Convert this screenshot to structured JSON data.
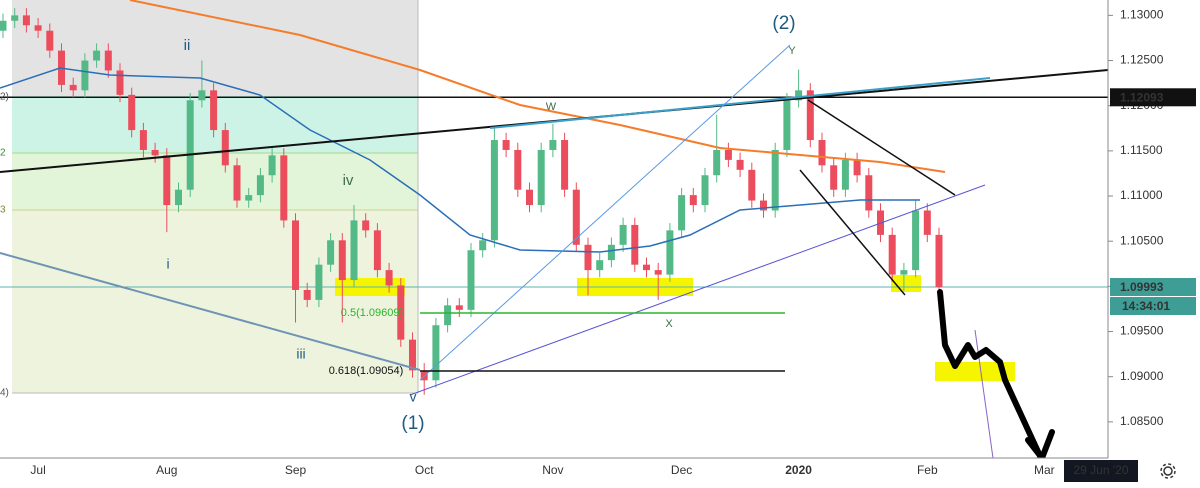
{
  "chart_data": {
    "type": "candlestick",
    "categories": [
      null,
      null,
      null,
      "Jul",
      null,
      null,
      null,
      null,
      null,
      null,
      null,
      null,
      null,
      null,
      "Aug",
      null,
      null,
      null,
      null,
      null,
      null,
      null,
      null,
      null,
      null,
      "Sep",
      null,
      null,
      null,
      null,
      null,
      null,
      null,
      null,
      null,
      null,
      "Oct",
      null,
      null,
      null,
      null,
      null,
      null,
      null,
      null,
      null,
      null,
      "Nov",
      null,
      null,
      null,
      null,
      null,
      null,
      null,
      null,
      null,
      null,
      "Dec",
      null,
      null,
      null,
      null,
      null,
      null,
      null,
      null,
      null,
      "2020",
      null,
      null,
      null,
      null,
      null,
      null,
      null,
      null,
      null,
      null,
      "Feb",
      null,
      null,
      null,
      null,
      null,
      null,
      null,
      null,
      null,
      "Mar",
      null
    ],
    "open": [
      1.1283,
      1.1294,
      1.13,
      1.1289,
      1.1283,
      1.1261,
      1.1223,
      1.1217,
      1.125,
      1.1261,
      1.1239,
      1.1212,
      1.1173,
      1.1151,
      1.1145,
      1.109,
      1.1107,
      1.1206,
      1.1217,
      1.1173,
      1.1134,
      1.1095,
      1.1101,
      1.1123,
      1.1145,
      1.1073,
      1.0996,
      1.0985,
      1.1024,
      1.1051,
      1.1007,
      1.1073,
      1.1062,
      1.1018,
      1.1001,
      1.0941,
      1.0907,
      1.0896,
      1.0957,
      1.0979,
      1.0974,
      1.104,
      1.1051,
      1.1162,
      1.1151,
      1.1107,
      1.109,
      1.1151,
      1.1162,
      1.1107,
      1.1046,
      1.1018,
      1.1029,
      1.1046,
      1.1068,
      1.1024,
      1.1018,
      1.1013,
      1.1062,
      1.1101,
      1.109,
      1.1123,
      1.1151,
      1.114,
      1.1129,
      1.1095,
      1.1084,
      1.1151,
      1.1206,
      1.1217,
      1.1162,
      1.1134,
      1.1107,
      1.114,
      1.1123,
      1.1084,
      1.1057,
      1.1013,
      1.1018,
      1.1084,
      1.1057,
      null,
      null,
      null,
      null,
      null,
      null,
      null,
      null,
      null,
      null
    ],
    "high": [
      1.1302,
      1.1308,
      1.1308,
      1.1297,
      1.1291,
      1.1269,
      1.1231,
      1.1258,
      1.1269,
      1.1269,
      1.1247,
      1.122,
      1.1181,
      1.1159,
      1.1153,
      1.1115,
      1.1214,
      1.125,
      1.1225,
      1.1181,
      1.1142,
      1.1109,
      1.1131,
      1.1153,
      1.1153,
      1.1081,
      1.1004,
      1.1032,
      1.1059,
      1.1059,
      1.109,
      1.1081,
      1.107,
      1.1026,
      1.1009,
      1.0949,
      1.0915,
      1.0965,
      1.0987,
      1.0987,
      1.1048,
      1.1059,
      1.1175,
      1.117,
      1.1159,
      1.1115,
      1.1159,
      1.118,
      1.117,
      1.1115,
      1.1054,
      1.1037,
      1.1054,
      1.1076,
      1.1076,
      1.1032,
      1.1026,
      1.107,
      1.1109,
      1.1109,
      1.1131,
      1.119,
      1.1159,
      1.1148,
      1.1137,
      1.1103,
      1.1159,
      1.1214,
      1.124,
      1.1225,
      1.117,
      1.1142,
      1.1148,
      1.1148,
      1.1131,
      1.1092,
      1.1065,
      1.1026,
      1.1095,
      1.1092,
      1.1065,
      null,
      null,
      null,
      null,
      null,
      null,
      null,
      null,
      null,
      null
    ],
    "low": [
      1.1275,
      1.1286,
      1.1281,
      1.1275,
      1.1253,
      1.1215,
      1.1209,
      1.1209,
      1.1242,
      1.1231,
      1.1204,
      1.1165,
      1.1143,
      1.1137,
      1.106,
      1.1082,
      1.1099,
      1.1198,
      1.1165,
      1.1126,
      1.1087,
      1.1087,
      1.1093,
      1.1115,
      1.1065,
      1.096,
      1.0977,
      1.0977,
      1.1016,
      1.096,
      1.0999,
      1.1054,
      1.101,
      1.0993,
      1.0933,
      1.0899,
      1.088,
      1.0888,
      1.0949,
      1.0966,
      1.0966,
      1.1032,
      1.1043,
      1.1143,
      1.1099,
      1.1082,
      1.1082,
      1.1143,
      1.1099,
      1.1038,
      1.099,
      1.101,
      1.1021,
      1.1038,
      1.1016,
      1.101,
      1.0985,
      1.1005,
      1.1054,
      1.1082,
      1.1082,
      1.1115,
      1.1132,
      1.1121,
      1.1087,
      1.1076,
      1.1076,
      1.1143,
      1.1198,
      1.1154,
      1.1126,
      1.1099,
      1.1099,
      1.1115,
      1.1076,
      1.1049,
      1.1005,
      1.0995,
      1.101,
      1.1049,
      1.0995,
      null,
      null,
      null,
      null,
      null,
      null,
      null,
      null,
      null,
      null
    ],
    "close": [
      1.1294,
      1.13,
      1.1289,
      1.1283,
      1.1261,
      1.1223,
      1.1217,
      1.125,
      1.1261,
      1.1239,
      1.1212,
      1.1173,
      1.1151,
      1.1145,
      1.109,
      1.1107,
      1.1206,
      1.1217,
      1.1173,
      1.1134,
      1.1095,
      1.1101,
      1.1123,
      1.1145,
      1.1073,
      1.0996,
      1.0985,
      1.1024,
      1.1051,
      1.1007,
      1.1073,
      1.1062,
      1.1018,
      1.1001,
      1.0941,
      1.0907,
      1.0896,
      1.0957,
      1.0979,
      1.0974,
      1.104,
      1.1051,
      1.1162,
      1.1151,
      1.1107,
      1.109,
      1.1151,
      1.1162,
      1.1107,
      1.1046,
      1.1018,
      1.1029,
      1.1046,
      1.1068,
      1.1024,
      1.1018,
      1.1013,
      1.1062,
      1.1101,
      1.109,
      1.1123,
      1.1151,
      1.114,
      1.1129,
      1.1095,
      1.1084,
      1.1151,
      1.1206,
      1.1217,
      1.1162,
      1.1134,
      1.1107,
      1.114,
      1.1123,
      1.1084,
      1.1057,
      1.1013,
      1.1018,
      1.1084,
      1.1057,
      1.0999,
      null,
      null,
      null,
      null,
      null,
      null,
      null,
      null,
      null,
      null
    ],
    "up_color": "#53b987",
    "down_color": "#eb4d5c",
    "ylim": [
      1.081,
      1.1317
    ],
    "yticks": [
      {
        "value": 1.085,
        "label": "1.08500"
      },
      {
        "value": 1.09,
        "label": "1.09000"
      },
      {
        "value": 1.095,
        "label": "1.09500"
      },
      {
        "value": 1.1,
        "label": "1.10000"
      },
      {
        "value": 1.105,
        "label": "1.10500"
      },
      {
        "value": 1.11,
        "label": "1.11000"
      },
      {
        "value": 1.115,
        "label": "1.11500"
      },
      {
        "value": 1.12,
        "label": "1.12000"
      },
      {
        "value": 1.125,
        "label": "1.12500"
      },
      {
        "value": 1.13,
        "label": "1.13000"
      }
    ],
    "price_lines": [
      1.12093,
      1.09993
    ],
    "countdown": "14:34:01",
    "cursor_date": "29 Jun '20",
    "annotations": [
      "(1)",
      "(2)",
      "i",
      "ii",
      "iii",
      "iv",
      "v",
      "W",
      "X",
      "Y",
      "0.5(1.09609)",
      "0.618(1.09054)",
      "2)",
      "2",
      "3",
      "4)"
    ]
  }
}
